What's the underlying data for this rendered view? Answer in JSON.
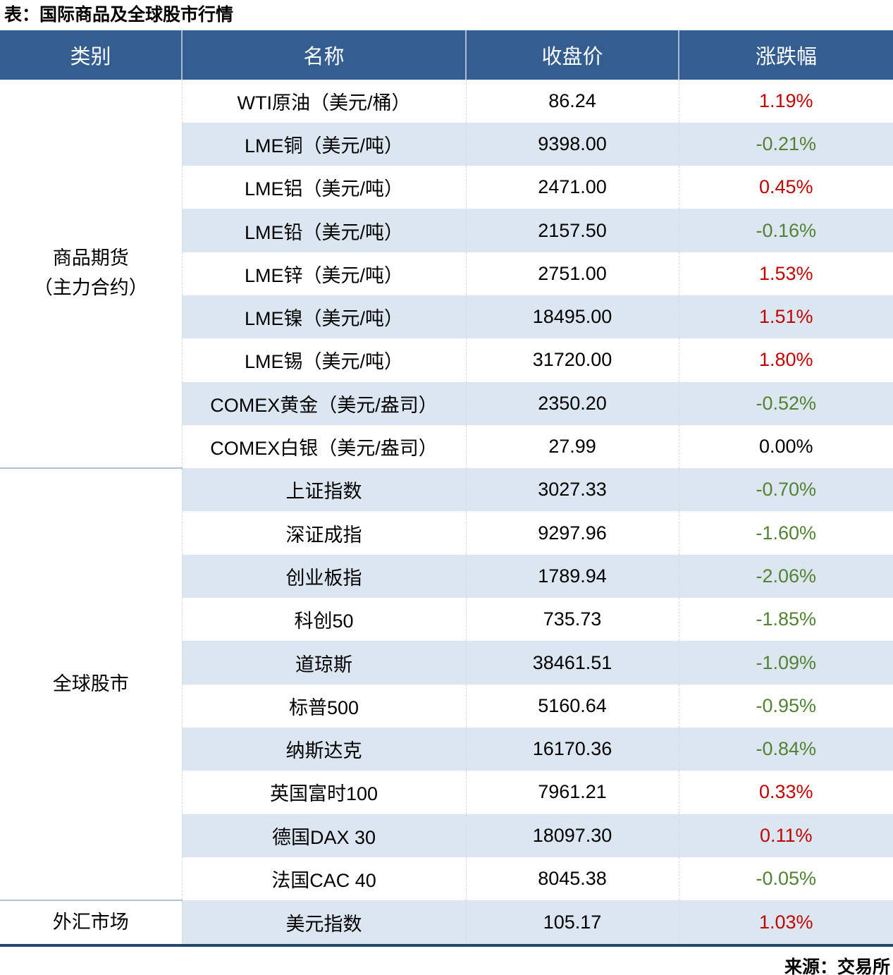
{
  "title": "表：国际商品及全球股市行情",
  "source": "来源：交易所",
  "colors": {
    "header_bg": "#355E90",
    "header_divider": "#A9BCD4",
    "stripe_bg": "#DCE6F1",
    "body_divider": "#D6DCE4",
    "group_line": "#AEC1D6",
    "bottom_line": "#24466B",
    "up": "#C00000",
    "down": "#538135",
    "flat": "#000000"
  },
  "table": {
    "headers": [
      "类别",
      "名称",
      "收盘价",
      "涨跌幅"
    ],
    "groups": [
      {
        "category_lines": [
          "商品期货",
          "（主力合约）"
        ],
        "rows": [
          {
            "name": "WTI原油（美元/桶）",
            "close": "86.24",
            "change": "1.19%",
            "direction": "up"
          },
          {
            "name": "LME铜（美元/吨）",
            "close": "9398.00",
            "change": "-0.21%",
            "direction": "down"
          },
          {
            "name": "LME铝（美元/吨）",
            "close": "2471.00",
            "change": "0.45%",
            "direction": "up"
          },
          {
            "name": "LME铅（美元/吨）",
            "close": "2157.50",
            "change": "-0.16%",
            "direction": "down"
          },
          {
            "name": "LME锌（美元/吨）",
            "close": "2751.00",
            "change": "1.53%",
            "direction": "up"
          },
          {
            "name": "LME镍（美元/吨）",
            "close": "18495.00",
            "change": "1.51%",
            "direction": "up"
          },
          {
            "name": "LME锡（美元/吨）",
            "close": "31720.00",
            "change": "1.80%",
            "direction": "up"
          },
          {
            "name": "COMEX黄金（美元/盎司）",
            "close": "2350.20",
            "change": "-0.52%",
            "direction": "down"
          },
          {
            "name": "COMEX白银（美元/盎司）",
            "close": "27.99",
            "change": "0.00%",
            "direction": "flat"
          }
        ]
      },
      {
        "category_lines": [
          "全球股市"
        ],
        "rows": [
          {
            "name": "上证指数",
            "close": "3027.33",
            "change": "-0.70%",
            "direction": "down"
          },
          {
            "name": "深证成指",
            "close": "9297.96",
            "change": "-1.60%",
            "direction": "down"
          },
          {
            "name": "创业板指",
            "close": "1789.94",
            "change": "-2.06%",
            "direction": "down"
          },
          {
            "name": "科创50",
            "close": "735.73",
            "change": "-1.85%",
            "direction": "down"
          },
          {
            "name": "道琼斯",
            "close": "38461.51",
            "change": "-1.09%",
            "direction": "down"
          },
          {
            "name": "标普500",
            "close": "5160.64",
            "change": "-0.95%",
            "direction": "down"
          },
          {
            "name": "纳斯达克",
            "close": "16170.36",
            "change": "-0.84%",
            "direction": "down"
          },
          {
            "name": "英国富时100",
            "close": "7961.21",
            "change": "0.33%",
            "direction": "up"
          },
          {
            "name": "德国DAX 30",
            "close": "18097.30",
            "change": "0.11%",
            "direction": "up"
          },
          {
            "name": "法国CAC 40",
            "close": "8045.38",
            "change": "-0.05%",
            "direction": "down"
          }
        ]
      },
      {
        "category_lines": [
          "外汇市场"
        ],
        "rows": [
          {
            "name": "美元指数",
            "close": "105.17",
            "change": "1.03%",
            "direction": "up"
          }
        ]
      }
    ]
  }
}
